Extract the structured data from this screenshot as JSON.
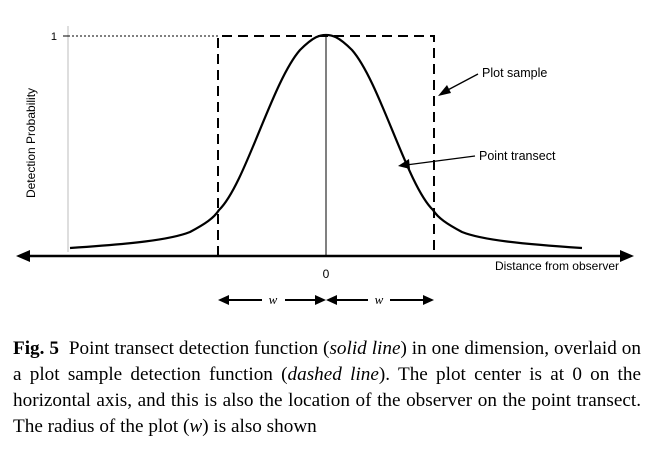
{
  "chart_data": {
    "type": "line",
    "ylabel": "Detection Probability",
    "xlabel": "Distance from observer",
    "y_tick_labels": [
      "1"
    ],
    "x_tick_labels": [
      "0"
    ],
    "annotations": {
      "plot_sample": "Plot sample",
      "point_transect": "Point transect",
      "radius_left": "w",
      "radius_right": "w"
    },
    "series": [
      {
        "name": "Point transect",
        "style": "solid"
      },
      {
        "name": "Plot sample",
        "style": "dashed"
      }
    ]
  },
  "caption": {
    "label": "Fig. 5",
    "text1": "Point transect detection function (",
    "solid": "solid line",
    "text2": ") in one dimension, overlaid on a plot sample detection function (",
    "dashed": "dashed line",
    "text3": "). The plot center is at 0 on the horizontal axis, and this is also the location of the observer on the point transect. The radius of the plot (",
    "w": "w",
    "text4": ") is also shown"
  }
}
